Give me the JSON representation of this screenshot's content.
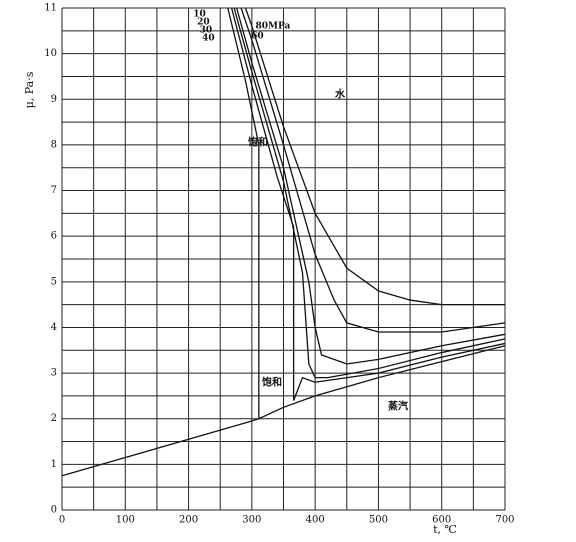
{
  "chart_data": {
    "type": "line",
    "xlabel": "t, ℃",
    "ylabel": "μ, Pa·s",
    "xlim": [
      0,
      700
    ],
    "ylim": [
      0,
      11
    ],
    "xticks": [
      0,
      100,
      200,
      300,
      400,
      500,
      600,
      700
    ],
    "yticks": [
      0,
      1,
      2,
      3,
      4,
      5,
      6,
      7,
      8,
      9,
      10,
      11
    ],
    "grid": true,
    "xminor": [
      50,
      150,
      250,
      350,
      450,
      550,
      650
    ],
    "yminor": [
      0.5,
      1.5,
      2.5,
      3.5,
      4.5,
      5.5,
      6.5,
      7.5,
      8.5,
      9.5,
      10.5
    ],
    "color": "#111111",
    "series": [
      {
        "name": "10",
        "x": [
          262,
          290,
          311,
          311,
          350,
          400,
          500,
          600,
          700
        ],
        "values": [
          11,
          9.4,
          8.0,
          2.0,
          2.25,
          2.5,
          2.9,
          3.25,
          3.6
        ]
      },
      {
        "name": "20",
        "x": [
          268,
          300,
          340,
          366,
          366,
          380,
          400,
          500,
          600,
          700
        ],
        "values": [
          11,
          9.3,
          7.3,
          6.2,
          2.4,
          2.9,
          2.8,
          3.0,
          3.35,
          3.65
        ]
      },
      {
        "name": "30",
        "x": [
          272,
          300,
          350,
          380,
          390,
          400,
          420,
          500,
          600,
          700
        ],
        "values": [
          11,
          9.6,
          7.2,
          5.2,
          3.2,
          2.9,
          2.9,
          3.1,
          3.45,
          3.75
        ]
      },
      {
        "name": "40",
        "x": [
          276,
          300,
          350,
          390,
          400,
          410,
          450,
          500,
          600,
          700
        ],
        "values": [
          11,
          9.8,
          7.5,
          5.0,
          4.0,
          3.4,
          3.2,
          3.3,
          3.6,
          3.85
        ]
      },
      {
        "name": "60",
        "x": [
          283,
          300,
          350,
          400,
          430,
          450,
          500,
          600,
          700
        ],
        "values": [
          11,
          10.3,
          8.0,
          5.6,
          4.6,
          4.1,
          3.9,
          3.9,
          4.1
        ]
      },
      {
        "name": "80MPa",
        "x": [
          290,
          300,
          350,
          400,
          450,
          500,
          550,
          600,
          700
        ],
        "values": [
          11,
          10.6,
          8.4,
          6.5,
          5.3,
          4.8,
          4.6,
          4.5,
          4.5
        ]
      },
      {
        "x": [
          0,
          100,
          200,
          300,
          311
        ],
        "values": [
          0.75,
          1.15,
          1.55,
          1.95,
          2.0
        ]
      }
    ],
    "annotations": [
      "水",
      "饱和",
      "饱和",
      "蒸汽"
    ]
  }
}
